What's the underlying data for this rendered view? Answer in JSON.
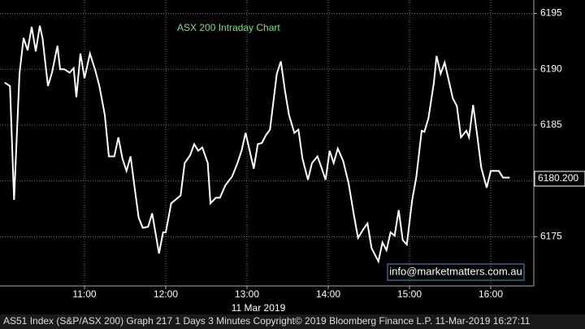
{
  "chart_data": {
    "type": "line",
    "title": "ASX 200 Intraday Chart",
    "date_label": "11 Mar 2019",
    "watermark": "info@marketmatters.com.au",
    "footer": "AS51 Index (S&P/ASX 200) Graph 217 1 Days 3 Minutes Copyright© 2019 Bloomberg Finance L.P. 11-Mar-2019 16:27:11",
    "color": "#ffffff",
    "grid": true,
    "x": [
      601,
      605,
      608,
      612,
      615,
      618,
      621,
      624,
      627,
      629,
      633,
      636,
      640,
      642,
      645,
      649,
      652,
      654,
      657,
      660,
      664,
      668,
      671,
      675,
      678,
      682,
      685,
      688,
      691,
      694,
      697,
      700,
      703,
      707,
      710,
      715,
      718,
      720,
      724,
      729,
      731,
      734,
      738,
      741,
      744,
      747,
      751,
      753,
      757,
      760,
      764,
      769,
      773,
      776,
      779,
      782,
      785,
      788,
      791,
      794,
      797,
      802,
      805,
      808,
      811,
      815,
      818,
      821,
      825,
      828,
      832,
      835,
      838,
      841,
      844,
      847,
      851,
      855,
      859,
      862,
      866,
      869,
      872,
      877,
      880,
      883,
      886,
      889,
      892,
      895,
      898,
      902,
      905,
      909,
      911,
      914,
      918,
      920,
      923,
      926,
      929,
      932,
      935,
      938,
      942,
      944,
      947,
      950,
      953,
      957,
      960,
      966,
      969,
      974
    ],
    "values": [
      6188.8,
      6188.5,
      6178.3,
      6189.6,
      6192.8,
      6191.7,
      6193.8,
      6191.6,
      6193.9,
      6192.8,
      6188.5,
      6189.7,
      6192.1,
      6190,
      6190,
      6189.7,
      6190.1,
      6187.5,
      6191.4,
      6189.2,
      6191.4,
      6189.9,
      6188.5,
      6185.9,
      6182.2,
      6182.2,
      6183.9,
      6182,
      6180.9,
      6182.2,
      6179.4,
      6176.7,
      6175.8,
      6175.9,
      6177.1,
      6173.5,
      6175.4,
      6175.4,
      6178,
      6178.5,
      6178.7,
      6181.6,
      6182.3,
      6183.3,
      6182.7,
      6183,
      6181.6,
      6178,
      6178.5,
      6178.5,
      6179.6,
      6180.4,
      6181.6,
      6182.7,
      6184.3,
      6182.7,
      6181.1,
      6183.3,
      6183.4,
      6184.1,
      6184.6,
      6189.6,
      6190.7,
      6188.1,
      6185.9,
      6184.3,
      6184.6,
      6182,
      6180.1,
      6181.6,
      6182.2,
      6181.2,
      6180.1,
      6182.7,
      6181.6,
      6182.9,
      6181.8,
      6179.8,
      6176.9,
      6174.9,
      6175.7,
      6176.2,
      6174,
      6172.8,
      6174.5,
      6173.8,
      6175.4,
      6175.1,
      6177.4,
      6174.7,
      6174.3,
      6178.3,
      6180.3,
      6184.5,
      6184.4,
      6185.6,
      6188.8,
      6191.2,
      6189.6,
      6190.6,
      6189,
      6187.4,
      6186.7,
      6183.9,
      6184.5,
      6183.9,
      6186.8,
      6184.1,
      6181.2,
      6179.4,
      6180.9,
      6180.9,
      6180.3,
      6180.3
    ],
    "last_price": {
      "value": 6180.2,
      "label": "6180.200"
    },
    "xlim": [
      597.6,
      991.8
    ],
    "xticks": [
      {
        "value": 660,
        "label": "11:00"
      },
      {
        "value": 720,
        "label": "12:00"
      },
      {
        "value": 780,
        "label": "13:00"
      },
      {
        "value": 840,
        "label": "14:00"
      },
      {
        "value": 900,
        "label": "15:00"
      },
      {
        "value": 960,
        "label": "16:00"
      }
    ],
    "ylim": [
      6170.6,
      6196.2
    ],
    "yticks": [
      6175,
      6180,
      6185,
      6190,
      6195
    ]
  }
}
